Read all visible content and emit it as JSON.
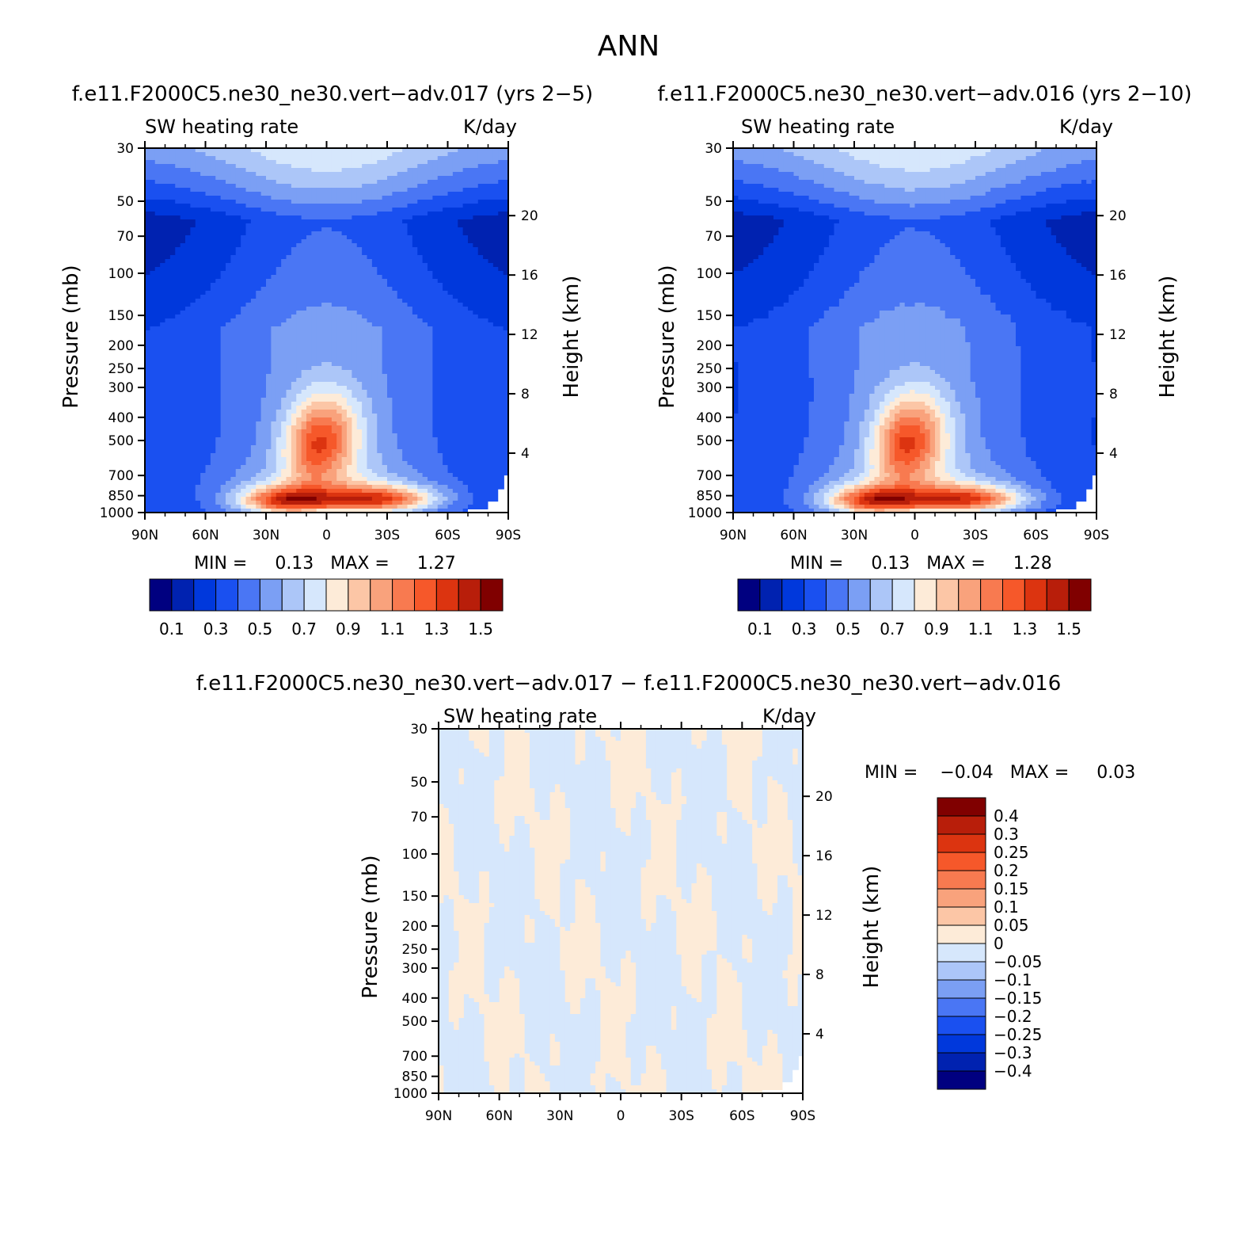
{
  "figure": {
    "main_title": "ANN"
  },
  "colors": {
    "sw_scale": [
      "#000080",
      "#0022b0",
      "#0038dc",
      "#1a50f0",
      "#4a76f4",
      "#7b9ff4",
      "#acc6f8",
      "#d6e7fc",
      "#fdebd8",
      "#fcc6a6",
      "#f9a27c",
      "#f87a50",
      "#f6582a",
      "#dc3410",
      "#b81e0a",
      "#800000"
    ],
    "diff_scale": [
      "#000080",
      "#0022b0",
      "#0038dc",
      "#1a50f0",
      "#4a76f4",
      "#7b9ff4",
      "#acc6f8",
      "#d6e7fc",
      "#fdebd8",
      "#fcc6a6",
      "#f9a27c",
      "#f87a50",
      "#f6582a",
      "#dc3410",
      "#b81e0a",
      "#800000"
    ]
  },
  "panels": [
    {
      "case_title": "f.e11.F2000C5.ne30_ne30.vert−adv.017 (yrs 2−5)",
      "field_label": "SW heating rate",
      "units_label": "K/day",
      "y_axis_label": "Pressure (mb)",
      "right_axis_label": "Height (km)",
      "stats": "MIN =     0.13   MAX =     1.27",
      "colorbar_labels": [
        "0.1",
        "0.3",
        "0.5",
        "0.7",
        "0.9",
        "1.1",
        "1.3",
        "1.5"
      ]
    },
    {
      "case_title": "f.e11.F2000C5.ne30_ne30.vert−adv.016 (yrs 2−10)",
      "field_label": "SW heating rate",
      "units_label": "K/day",
      "y_axis_label": "Pressure (mb)",
      "right_axis_label": "Height (km)",
      "stats": "MIN =     0.13   MAX =     1.28",
      "colorbar_labels": [
        "0.1",
        "0.3",
        "0.5",
        "0.7",
        "0.9",
        "1.1",
        "1.3",
        "1.5"
      ]
    },
    {
      "case_title": "f.e11.F2000C5.ne30_ne30.vert−adv.017 − f.e11.F2000C5.ne30_ne30.vert−adv.016",
      "field_label": "SW heating rate",
      "units_label": "K/day",
      "y_axis_label": "Pressure (mb)",
      "right_axis_label": "Height (km)",
      "stats": "MIN =    −0.04   MAX =     0.03",
      "colorbar_labels": [
        "0.4",
        "0.3",
        "0.25",
        "0.2",
        "0.15",
        "0.1",
        "0.05",
        "0",
        "−0.05",
        "−0.1",
        "−0.15",
        "−0.2",
        "−0.25",
        "−0.3",
        "−0.4"
      ]
    }
  ],
  "chart_data": [
    {
      "type": "heatmap",
      "title": "SW heating rate",
      "units": "K/day",
      "x_tick_labels": [
        "90N",
        "60N",
        "30N",
        "0",
        "30S",
        "60S",
        "90S"
      ],
      "x_ticks": [
        90,
        60,
        30,
        0,
        -30,
        -60,
        -90
      ],
      "y_tick_labels": [
        "30",
        "50",
        "70",
        "100",
        "150",
        "200",
        "250",
        "300",
        "400",
        "500",
        "700",
        "850",
        "1000"
      ],
      "y_ticks": [
        30,
        50,
        70,
        100,
        150,
        200,
        250,
        300,
        400,
        500,
        700,
        850,
        1000
      ],
      "y_scale": "log",
      "y_range": [
        30,
        1000
      ],
      "right_axis_tick_labels": [
        "20",
        "16",
        "12",
        "8",
        "4"
      ],
      "right_axis_ticks": [
        20,
        16,
        12,
        8,
        4
      ],
      "min": 0.13,
      "max": 1.27,
      "contour_levels": [
        0.1,
        0.2,
        0.3,
        0.4,
        0.5,
        0.6,
        0.7,
        0.8,
        0.9,
        1.0,
        1.1,
        1.2,
        1.3,
        1.4,
        1.5
      ]
    },
    {
      "type": "heatmap",
      "title": "SW heating rate",
      "units": "K/day",
      "x_tick_labels": [
        "90N",
        "60N",
        "30N",
        "0",
        "30S",
        "60S",
        "90S"
      ],
      "x_ticks": [
        90,
        60,
        30,
        0,
        -30,
        -60,
        -90
      ],
      "y_tick_labels": [
        "30",
        "50",
        "70",
        "100",
        "150",
        "200",
        "250",
        "300",
        "400",
        "500",
        "700",
        "850",
        "1000"
      ],
      "y_ticks": [
        30,
        50,
        70,
        100,
        150,
        200,
        250,
        300,
        400,
        500,
        700,
        850,
        1000
      ],
      "y_scale": "log",
      "y_range": [
        30,
        1000
      ],
      "right_axis_tick_labels": [
        "20",
        "16",
        "12",
        "8",
        "4"
      ],
      "right_axis_ticks": [
        20,
        16,
        12,
        8,
        4
      ],
      "min": 0.13,
      "max": 1.28,
      "contour_levels": [
        0.1,
        0.2,
        0.3,
        0.4,
        0.5,
        0.6,
        0.7,
        0.8,
        0.9,
        1.0,
        1.1,
        1.2,
        1.3,
        1.4,
        1.5
      ]
    },
    {
      "type": "heatmap",
      "title": "SW heating rate",
      "units": "K/day",
      "x_tick_labels": [
        "90N",
        "60N",
        "30N",
        "0",
        "30S",
        "60S",
        "90S"
      ],
      "x_ticks": [
        90,
        60,
        30,
        0,
        -30,
        -60,
        -90
      ],
      "y_tick_labels": [
        "30",
        "50",
        "70",
        "100",
        "150",
        "200",
        "250",
        "300",
        "400",
        "500",
        "700",
        "850",
        "1000"
      ],
      "y_ticks": [
        30,
        50,
        70,
        100,
        150,
        200,
        250,
        300,
        400,
        500,
        700,
        850,
        1000
      ],
      "y_scale": "log",
      "y_range": [
        30,
        1000
      ],
      "right_axis_tick_labels": [
        "20",
        "16",
        "12",
        "8",
        "4"
      ],
      "right_axis_ticks": [
        20,
        16,
        12,
        8,
        4
      ],
      "min": -0.04,
      "max": 0.03,
      "contour_levels": [
        -0.4,
        -0.3,
        -0.25,
        -0.2,
        -0.15,
        -0.1,
        -0.05,
        0,
        0.05,
        0.1,
        0.15,
        0.2,
        0.25,
        0.3,
        0.4
      ]
    }
  ]
}
